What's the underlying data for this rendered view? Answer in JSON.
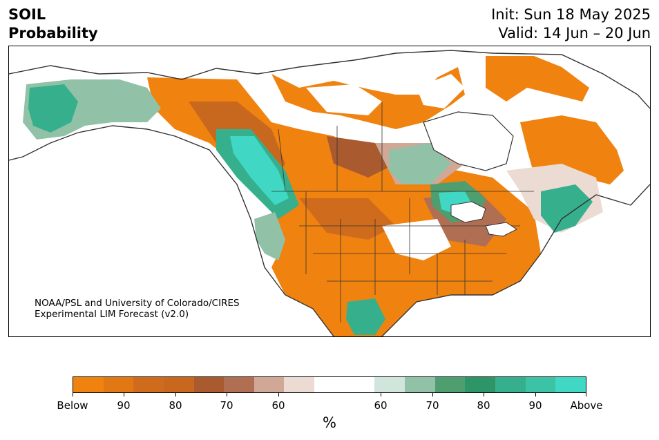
{
  "header": {
    "title_line1": "SOIL",
    "title_line2": "Probability",
    "init": "Init: Sun 18 May 2025",
    "valid": "Valid: 14 Jun – 20 Jun"
  },
  "map": {
    "credit_line1": "NOAA/PSL and University of Colorado/CIRES",
    "credit_line2": "Experimental LIM Forecast (v2.0)"
  },
  "colorbar": {
    "unit": "%",
    "colors": [
      "#f0820f",
      "#e27814",
      "#cf6b1d",
      "#c8681f",
      "#a95a2e",
      "#b06e53",
      "#d1a895",
      "#ebdbd2",
      "#ffffff",
      "#ffffff",
      "#d0e6dc",
      "#91c2a8",
      "#4f9e70",
      "#2e9568",
      "#36b08c",
      "#3cc2a4",
      "#40d8c4"
    ],
    "tick_labels": [
      "Below",
      "90",
      "80",
      "70",
      "60",
      "60",
      "70",
      "80",
      "90",
      "Above"
    ]
  }
}
